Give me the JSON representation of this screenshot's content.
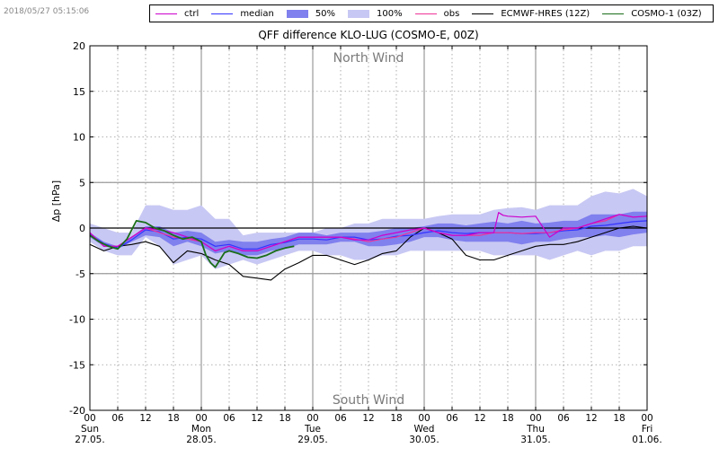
{
  "timestamp": "2018/05/27 05:15:06",
  "legend": [
    {
      "label": "ctrl",
      "color": "#cc00cc",
      "kind": "line"
    },
    {
      "label": "median",
      "color": "#3333ff",
      "kind": "line"
    },
    {
      "label": "50%",
      "color": "#8080ee",
      "kind": "box"
    },
    {
      "label": "100%",
      "color": "#c8c8f4",
      "kind": "box"
    },
    {
      "label": "obs",
      "color": "#ee3399",
      "kind": "line"
    },
    {
      "label": "ECMWF-HRES (12Z)",
      "color": "#000000",
      "kind": "line"
    },
    {
      "label": "COSMO-1 (03Z)",
      "color": "#1a6e1a",
      "kind": "line"
    }
  ],
  "chart_data": {
    "type": "line",
    "title": "QFF difference KLO-LUG (COSMO-E, 00Z)",
    "ylabel": "Δp [hPa]",
    "xlabel": "",
    "ylim": [
      -20,
      20
    ],
    "yticks": [
      -20,
      -15,
      -10,
      -5,
      0,
      5,
      10,
      15,
      20
    ],
    "xlim_hours": [
      0,
      120
    ],
    "x_unit": "hours since 27.05. 00 UTC",
    "xticks": [
      {
        "h": 0,
        "label": "00"
      },
      {
        "h": 6,
        "label": "06"
      },
      {
        "h": 12,
        "label": "12"
      },
      {
        "h": 18,
        "label": "18"
      },
      {
        "h": 24,
        "label": "00"
      },
      {
        "h": 30,
        "label": "06"
      },
      {
        "h": 36,
        "label": "12"
      },
      {
        "h": 42,
        "label": "18"
      },
      {
        "h": 48,
        "label": "00"
      },
      {
        "h": 54,
        "label": "06"
      },
      {
        "h": 60,
        "label": "12"
      },
      {
        "h": 66,
        "label": "18"
      },
      {
        "h": 72,
        "label": "00"
      },
      {
        "h": 78,
        "label": "06"
      },
      {
        "h": 84,
        "label": "12"
      },
      {
        "h": 90,
        "label": "18"
      },
      {
        "h": 96,
        "label": "00"
      },
      {
        "h": 102,
        "label": "06"
      },
      {
        "h": 108,
        "label": "12"
      },
      {
        "h": 114,
        "label": "18"
      },
      {
        "h": 120,
        "label": "00"
      }
    ],
    "day_labels": [
      {
        "h": 0,
        "day": "Sun",
        "date": "27.05."
      },
      {
        "h": 24,
        "day": "Mon",
        "date": "28.05."
      },
      {
        "h": 48,
        "day": "Tue",
        "date": "29.05."
      },
      {
        "h": 72,
        "day": "Wed",
        "date": "30.05."
      },
      {
        "h": 96,
        "day": "Thu",
        "date": "31.05."
      },
      {
        "h": 120,
        "day": "Fri",
        "date": "01.06."
      }
    ],
    "annotations": [
      {
        "text": "North Wind",
        "h": 60,
        "y": 18.8
      },
      {
        "text": "South Wind",
        "h": 60,
        "y": -18.7
      }
    ],
    "grid": true,
    "legend_position": "top",
    "band_100": {
      "x": [
        0,
        3,
        6,
        9,
        12,
        15,
        18,
        21,
        24,
        27,
        30,
        33,
        36,
        39,
        42,
        45,
        48,
        51,
        54,
        57,
        60,
        63,
        66,
        69,
        72,
        75,
        78,
        81,
        84,
        87,
        90,
        93,
        96,
        99,
        102,
        105,
        108,
        111,
        114,
        117,
        120
      ],
      "upper": [
        0.5,
        0,
        -0.5,
        -0.5,
        2.5,
        2.5,
        2,
        2,
        2.5,
        1,
        1,
        -0.8,
        -0.5,
        -0.5,
        -0.5,
        -0.5,
        -0.5,
        0,
        0,
        0.5,
        0.5,
        1,
        1,
        1,
        1,
        1.3,
        1.5,
        1.5,
        1.5,
        2,
        2.2,
        2.3,
        2,
        2.5,
        2.5,
        2.5,
        3.5,
        4,
        3.8,
        4.3,
        3.5
      ],
      "lower": [
        -1.5,
        -2.5,
        -3,
        -3,
        -1,
        -2,
        -4,
        -3.5,
        -3,
        -4.5,
        -4,
        -3.5,
        -4,
        -3.5,
        -3,
        -2.5,
        -2.5,
        -3,
        -3,
        -3.5,
        -3.5,
        -3,
        -3,
        -2.5,
        -2.5,
        -2.5,
        -2.5,
        -2.5,
        -2.5,
        -3,
        -3,
        -3,
        -3,
        -3.5,
        -3,
        -2.5,
        -3,
        -2.5,
        -2.5,
        -2,
        -2
      ]
    },
    "band_50": {
      "x": [
        0,
        3,
        6,
        9,
        12,
        15,
        18,
        21,
        24,
        27,
        30,
        33,
        36,
        39,
        42,
        45,
        48,
        51,
        54,
        57,
        60,
        63,
        66,
        69,
        72,
        75,
        78,
        81,
        84,
        87,
        90,
        93,
        96,
        99,
        102,
        105,
        108,
        111,
        114,
        117,
        120
      ],
      "upper": [
        -0.5,
        -1.5,
        -2,
        -1,
        0.2,
        0.2,
        -0.5,
        -0.3,
        -0.5,
        -1.5,
        -1.3,
        -1.5,
        -1.5,
        -1.2,
        -1,
        -0.5,
        -0.5,
        -0.8,
        -0.5,
        -0.5,
        -0.5,
        -0.3,
        0,
        0,
        0.2,
        0.5,
        0.5,
        0.3,
        0.5,
        0.7,
        0.5,
        0.8,
        0.5,
        0.6,
        0.8,
        0.8,
        1.5,
        1.5,
        1.5,
        1.8,
        1.8
      ],
      "lower": [
        -1,
        -2,
        -2.3,
        -1.5,
        -0.8,
        -1,
        -2,
        -1.5,
        -2,
        -2.8,
        -2.5,
        -3,
        -3,
        -2.5,
        -2.3,
        -1.8,
        -1.8,
        -1.8,
        -1.5,
        -1.5,
        -2,
        -2,
        -1.8,
        -1.5,
        -1,
        -1,
        -1.3,
        -1.5,
        -1.5,
        -1.5,
        -1.5,
        -1.8,
        -1.5,
        -1.5,
        -1.2,
        -1,
        -1,
        -0.8,
        -1,
        -0.7,
        -0.5
      ]
    },
    "series": [
      {
        "name": "ctrl",
        "color": "#cc00cc",
        "width": 1.2,
        "x": [
          0,
          3,
          6,
          9,
          12,
          15,
          18,
          21,
          24,
          27,
          30,
          33,
          36,
          39,
          42,
          45,
          48,
          51,
          54,
          57,
          60,
          63,
          66,
          69,
          72,
          75,
          78,
          81,
          84,
          87,
          88,
          89,
          90,
          93,
          96,
          99,
          102,
          105,
          108,
          111,
          114,
          117,
          120
        ],
        "y": [
          -0.5,
          -2,
          -2,
          -1,
          0,
          -0.2,
          -0.5,
          -1,
          -1.5,
          -2.5,
          -2,
          -2.5,
          -2.5,
          -2,
          -1.5,
          -1,
          -1,
          -1,
          -1,
          -1.3,
          -1.3,
          -0.8,
          -0.5,
          -0.2,
          0,
          -0.5,
          -0.8,
          -0.8,
          -0.5,
          -0.5,
          1.7,
          1.4,
          1.3,
          1.2,
          1.3,
          -1,
          0,
          0,
          0.5,
          1,
          1.5,
          1.2,
          1.3
        ]
      },
      {
        "name": "median",
        "color": "#3333ff",
        "width": 1.2,
        "x": [
          0,
          3,
          6,
          9,
          12,
          15,
          18,
          21,
          24,
          27,
          30,
          33,
          36,
          39,
          42,
          45,
          48,
          51,
          54,
          57,
          60,
          63,
          66,
          69,
          72,
          75,
          78,
          81,
          84,
          87,
          90,
          93,
          96,
          99,
          102,
          105,
          108,
          111,
          114,
          117,
          120
        ],
        "y": [
          -0.7,
          -1.7,
          -2.2,
          -1.3,
          -0.2,
          -0.4,
          -1.2,
          -1,
          -1.2,
          -2,
          -1.8,
          -2.3,
          -2.3,
          -1.8,
          -1.6,
          -1.2,
          -1.2,
          -1.3,
          -1,
          -1,
          -1.3,
          -1.2,
          -0.9,
          -0.8,
          -0.5,
          -0.3,
          -0.5,
          -0.6,
          -0.5,
          -0.5,
          -0.5,
          -0.6,
          -0.6,
          -0.5,
          -0.3,
          -0.2,
          0.2,
          0.3,
          0.5,
          0.7,
          0.8
        ]
      },
      {
        "name": "obs",
        "color": "#ee3399",
        "width": 1.2,
        "x": [
          0,
          3,
          6,
          9,
          12,
          15,
          18,
          21,
          24,
          27,
          30,
          33,
          36,
          39,
          42,
          45,
          48,
          51,
          54,
          57,
          60,
          63,
          66,
          69,
          72,
          75,
          78,
          81,
          84,
          87,
          90,
          93,
          96,
          99,
          102,
          105,
          108,
          111,
          114,
          117,
          120
        ],
        "y": [
          -0.5,
          -2,
          -2,
          -1,
          0,
          -0.5,
          -1,
          -1.2,
          -1.5,
          -2.5,
          -2,
          -2.5,
          -2.5,
          -2,
          -1.5,
          -1,
          -1,
          -1,
          -1,
          -1.2,
          -1.5,
          -1.2,
          -1,
          -0.5,
          0,
          -0.5,
          -0.8,
          -0.8,
          -0.8,
          -0.5,
          -0.5,
          -0.6,
          -0.5,
          -0.5,
          -0.2,
          0,
          0.5,
          0.8,
          1.5,
          1.2,
          1.3
        ]
      },
      {
        "name": "ECMWF-HRES (12Z)",
        "color": "#000000",
        "width": 1.1,
        "x": [
          0,
          3,
          6,
          9,
          12,
          15,
          18,
          21,
          24,
          27,
          30,
          33,
          36,
          39,
          42,
          45,
          48,
          51,
          54,
          57,
          60,
          63,
          66,
          69,
          72,
          75,
          78,
          81,
          84,
          87,
          90,
          93,
          96,
          99,
          102,
          105,
          108,
          111,
          114,
          117,
          120
        ],
        "y": [
          -1.8,
          -2.5,
          -2,
          -1.8,
          -1.5,
          -2,
          -3.8,
          -2.5,
          -2.8,
          -3.5,
          -4,
          -5.3,
          -5.5,
          -5.7,
          -4.5,
          -3.8,
          -3,
          -3,
          -3.5,
          -4,
          -3.5,
          -2.8,
          -2.5,
          -1,
          0,
          -0.5,
          -1.2,
          -3,
          -3.5,
          -3.5,
          -3,
          -2.5,
          -2,
          -1.8,
          -1.8,
          -1.5,
          -1,
          -0.5,
          0,
          0.2,
          0
        ]
      },
      {
        "name": "COSMO-1 (03Z)",
        "color": "#1a6e1a",
        "width": 1.8,
        "x": [
          0,
          2,
          4,
          6,
          8,
          10,
          12,
          14,
          16,
          18,
          20,
          22,
          24,
          25,
          26,
          27,
          28,
          29,
          30,
          32,
          34,
          36,
          38,
          40,
          42,
          44
        ],
        "y": [
          -0.8,
          -1.5,
          -2,
          -2.3,
          -1.2,
          0.8,
          0.6,
          0,
          -0.3,
          -0.8,
          -1.2,
          -1,
          -1.5,
          -3,
          -3.8,
          -4.3,
          -3.5,
          -2.7,
          -2.5,
          -2.8,
          -3.2,
          -3.3,
          -3,
          -2.5,
          -2.2,
          -2
        ]
      }
    ]
  }
}
